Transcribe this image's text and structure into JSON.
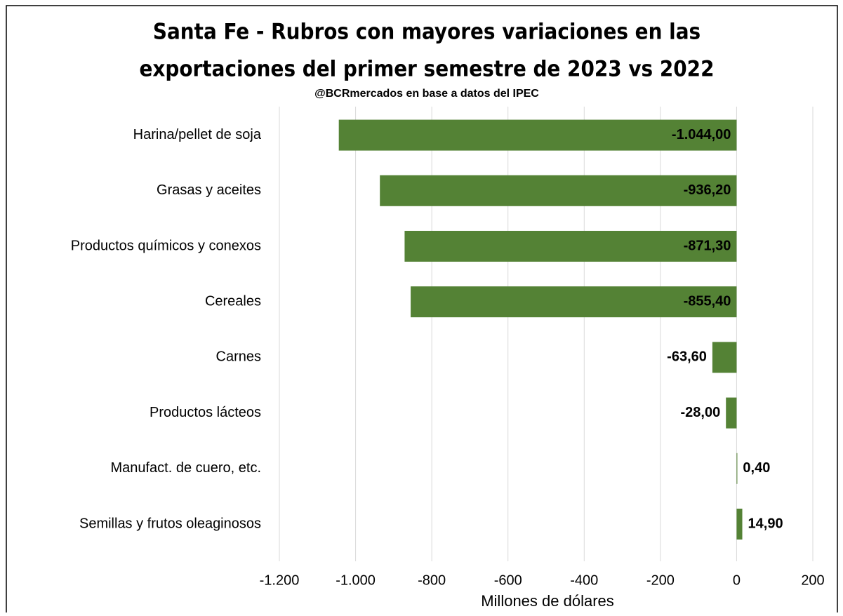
{
  "chart_data": {
    "type": "bar",
    "orientation": "horizontal",
    "title": [
      "Santa Fe - Rubros con mayores variaciones en las",
      "exportaciones del primer semestre de 2023 vs 2022"
    ],
    "subtitle": "@BCRmercados  en base a datos del IPEC",
    "x_label": "Millones de dólares",
    "categories": [
      "Harina/pellet de soja",
      "Grasas y aceites",
      "Productos químicos y conexos",
      "Cereales",
      "Carnes",
      "Productos lácteos",
      "Manufact. de cuero, etc.",
      "Semillas y frutos oleaginosos"
    ],
    "values": [
      -1044,
      -936.2,
      -871.3,
      -855.4,
      -63.6,
      -28,
      0.4,
      14.9
    ],
    "value_labels": [
      "-1.044,00",
      "-936,20",
      "-871,30",
      "-855,40",
      "-63,60",
      "-28,00",
      "0,40",
      "14,90"
    ],
    "color": "#548235",
    "xlim": [
      -1200,
      200
    ],
    "xticks": [
      {
        "value": -1200,
        "label": "-1.200"
      },
      {
        "value": -1000,
        "label": "-1.000"
      },
      -800,
      -600,
      -400,
      -200,
      0,
      200
    ],
    "grid": true
  }
}
